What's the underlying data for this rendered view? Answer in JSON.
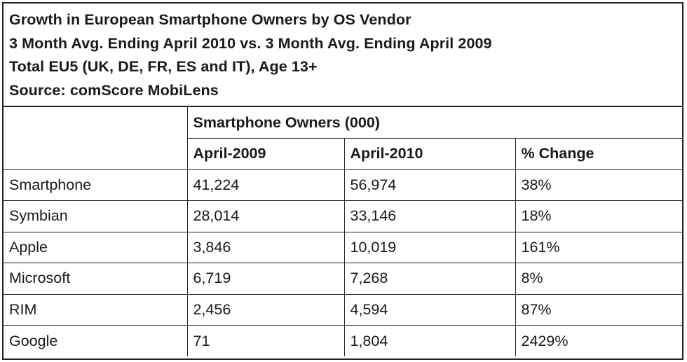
{
  "header": {
    "title": "Growth in European Smartphone Owners by OS Vendor",
    "subtitle": "3 Month Avg. Ending April 2010 vs. 3 Month Avg. Ending April 2009",
    "geo": "Total EU5 (UK, DE, FR, ES and IT), Age 13+",
    "source": "Source: comScore MobiLens"
  },
  "chart_data": {
    "type": "table",
    "title": "Growth in European Smartphone Owners by OS Vendor",
    "group_header": "Smartphone Owners (000)",
    "columns": [
      "April-2009",
      "April-2010",
      "% Change"
    ],
    "rows": [
      {
        "label": "Smartphone",
        "april_2009": "41,224",
        "april_2010": "56,974",
        "change": "38%"
      },
      {
        "label": "Symbian",
        "april_2009": "28,014",
        "april_2010": "33,146",
        "change": "18%"
      },
      {
        "label": "Apple",
        "april_2009": "3,846",
        "april_2010": "10,019",
        "change": "161%"
      },
      {
        "label": "Microsoft",
        "april_2009": "6,719",
        "april_2010": "7,268",
        "change": "8%"
      },
      {
        "label": "RIM",
        "april_2009": "2,456",
        "april_2010": "4,594",
        "change": "87%"
      },
      {
        "label": "Google",
        "april_2009": "71",
        "april_2010": "1,804",
        "change": "2429%"
      }
    ]
  }
}
